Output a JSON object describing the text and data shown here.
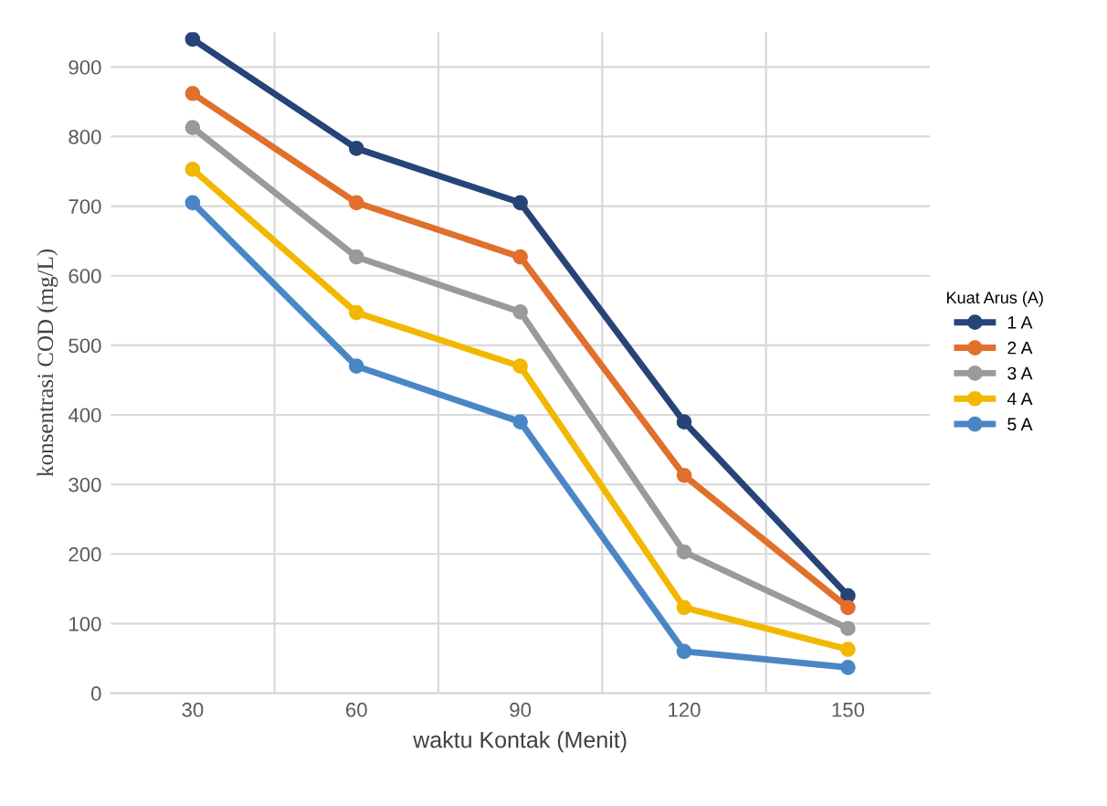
{
  "chart_data": {
    "type": "line",
    "xlabel": "waktu Kontak (Menit)",
    "ylabel": "konsentrasi COD (mg/L)",
    "legend_title": "Kuat Arus (A)",
    "categories": [
      "30",
      "60",
      "90",
      "120",
      "150"
    ],
    "series": [
      {
        "name": "1 A",
        "color": "#264478",
        "values": [
          940,
          783,
          705,
          390,
          140
        ]
      },
      {
        "name": "2 A",
        "color": "#e0702c",
        "values": [
          862,
          705,
          627,
          313,
          123
        ]
      },
      {
        "name": "3 A",
        "color": "#9a9a9a",
        "values": [
          813,
          627,
          548,
          203,
          93
        ]
      },
      {
        "name": "4 A",
        "color": "#f2b800",
        "values": [
          753,
          547,
          470,
          123,
          63
        ]
      },
      {
        "name": "5 A",
        "color": "#4a86c5",
        "values": [
          705,
          470,
          390,
          60,
          37
        ]
      }
    ],
    "ylim": [
      0,
      950
    ],
    "yticks": [
      0,
      100,
      200,
      300,
      400,
      500,
      600,
      700,
      800,
      900
    ],
    "grid": true,
    "legend": "right",
    "marker": "circle",
    "line_style": "solid"
  }
}
